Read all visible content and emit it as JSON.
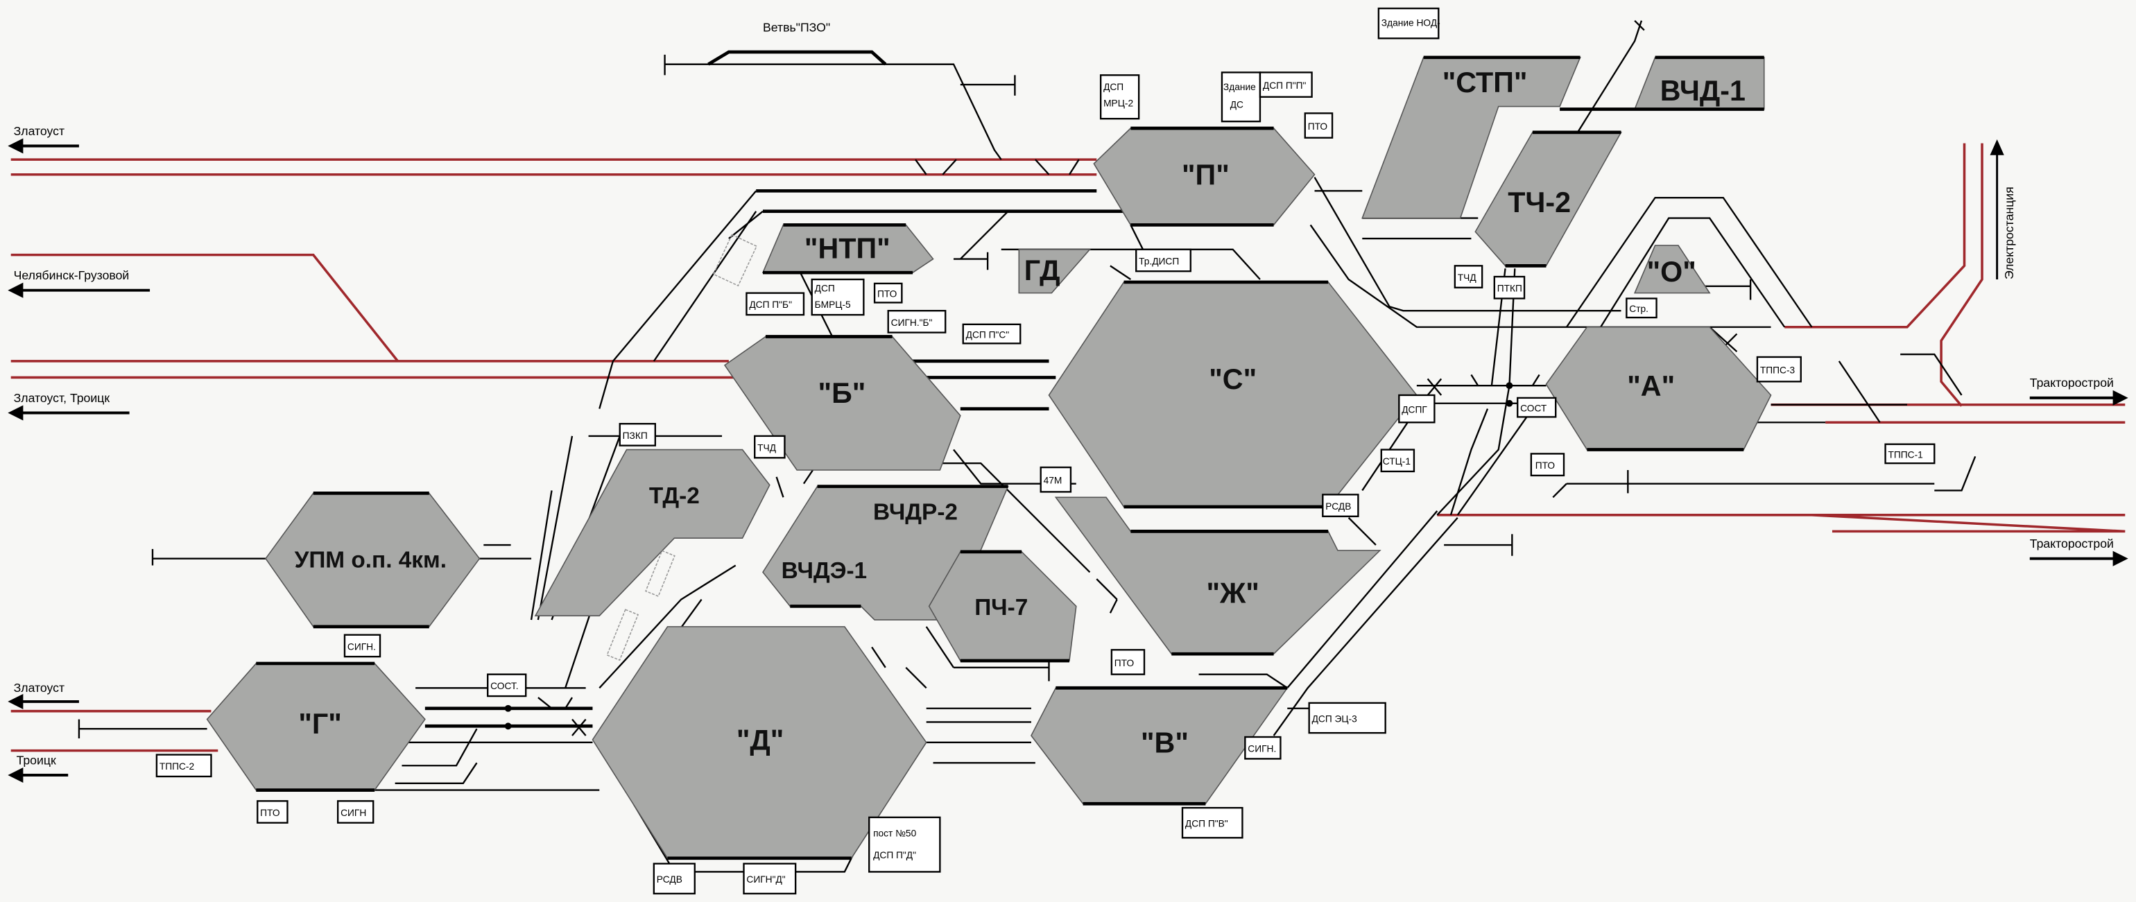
{
  "colors": {
    "background": "#f7f7f5",
    "park_fill": "#a8a9a7",
    "main_line": "#a0282c",
    "track": "#000000"
  },
  "branch_label": "Ветвь\"ПЗО\"",
  "directions": {
    "zlatoust_top": "Златоуст",
    "chelyabinsk": "Челябинск-Грузовой",
    "zlatoust_troitsk": "Златоуст, Троицк",
    "zlatoust_bottom": "Златоуст",
    "troitsk": "Троицк",
    "traktorostroy_top": "Тракторострой",
    "traktorostroy_bottom": "Тракторострой",
    "electrostation": "Электростанция"
  },
  "parks": {
    "P": "\"П\"",
    "S": "\"С\"",
    "B": "\"Б\"",
    "NTP": "\"НТП\"",
    "GD": "ГД",
    "STP": "\"СТП\"",
    "VCHD1": "ВЧД-1",
    "TCH2": "ТЧ-2",
    "O": "\"О\"",
    "A": "\"А\"",
    "ZH": "\"Ж\"",
    "V": "\"В\"",
    "D": "\"Д\"",
    "G": "\"Г\"",
    "UPM": "УПМ о.п. 4км.",
    "TD2": "ТД-2",
    "VCHDR2": "ВЧДР-2",
    "VCHDE1": "ВЧДЭ-1",
    "PCH7": "ПЧ-7"
  },
  "labels": {
    "nod": "Здание НОД-",
    "dsp_mrc2_1": "ДСП",
    "dsp_mrc2_2": "МРЦ-2",
    "ds_1": "Здание",
    "ds_2": "ДС",
    "dsp_p": "ДСП П\"П\"",
    "pto_p": "ПТО",
    "tr_disp": "Тр.ДИСП",
    "tchd_top": "ТЧД",
    "ptkp": "ПТКП",
    "str": "Стр.",
    "tpps3": "ТППС-3",
    "dspg": "ДСПГ",
    "sost_a": "СОСТ",
    "stc1": "СТЦ-1",
    "rsdv_s": "РСДВ",
    "pto_a": "ПТО",
    "tpps1": "ТППС-1",
    "dsp_b": "ДСП П\"Б\"",
    "dsp_bmrc5_1": "ДСП",
    "dsp_bmrc5_2": "БМРЦ-5",
    "pto_b": "ПТО",
    "sign_b": "СИГН.\"Б\"",
    "dsp_s": "ДСП П\"С\"",
    "pzkp": "ПЗКП",
    "tchd_b": "ТЧД",
    "m47": "47М",
    "sign_g_top": "СИГН.",
    "sost_g": "СОСТ.",
    "tpps2": "ТППС-2",
    "pto_g": "ПТО",
    "sign_g": "СИГН",
    "rsdv_d": "РСДВ",
    "sign_d": "СИГН\"Д\"",
    "post50_1": "пост №50",
    "post50_2": "ДСП П\"Д\"",
    "pto_v": "ПТО",
    "dsp_ec3": "ДСП ЭЦ-3",
    "sign_v": "СИГН.",
    "dsp_v": "ДСП П\"В\""
  }
}
